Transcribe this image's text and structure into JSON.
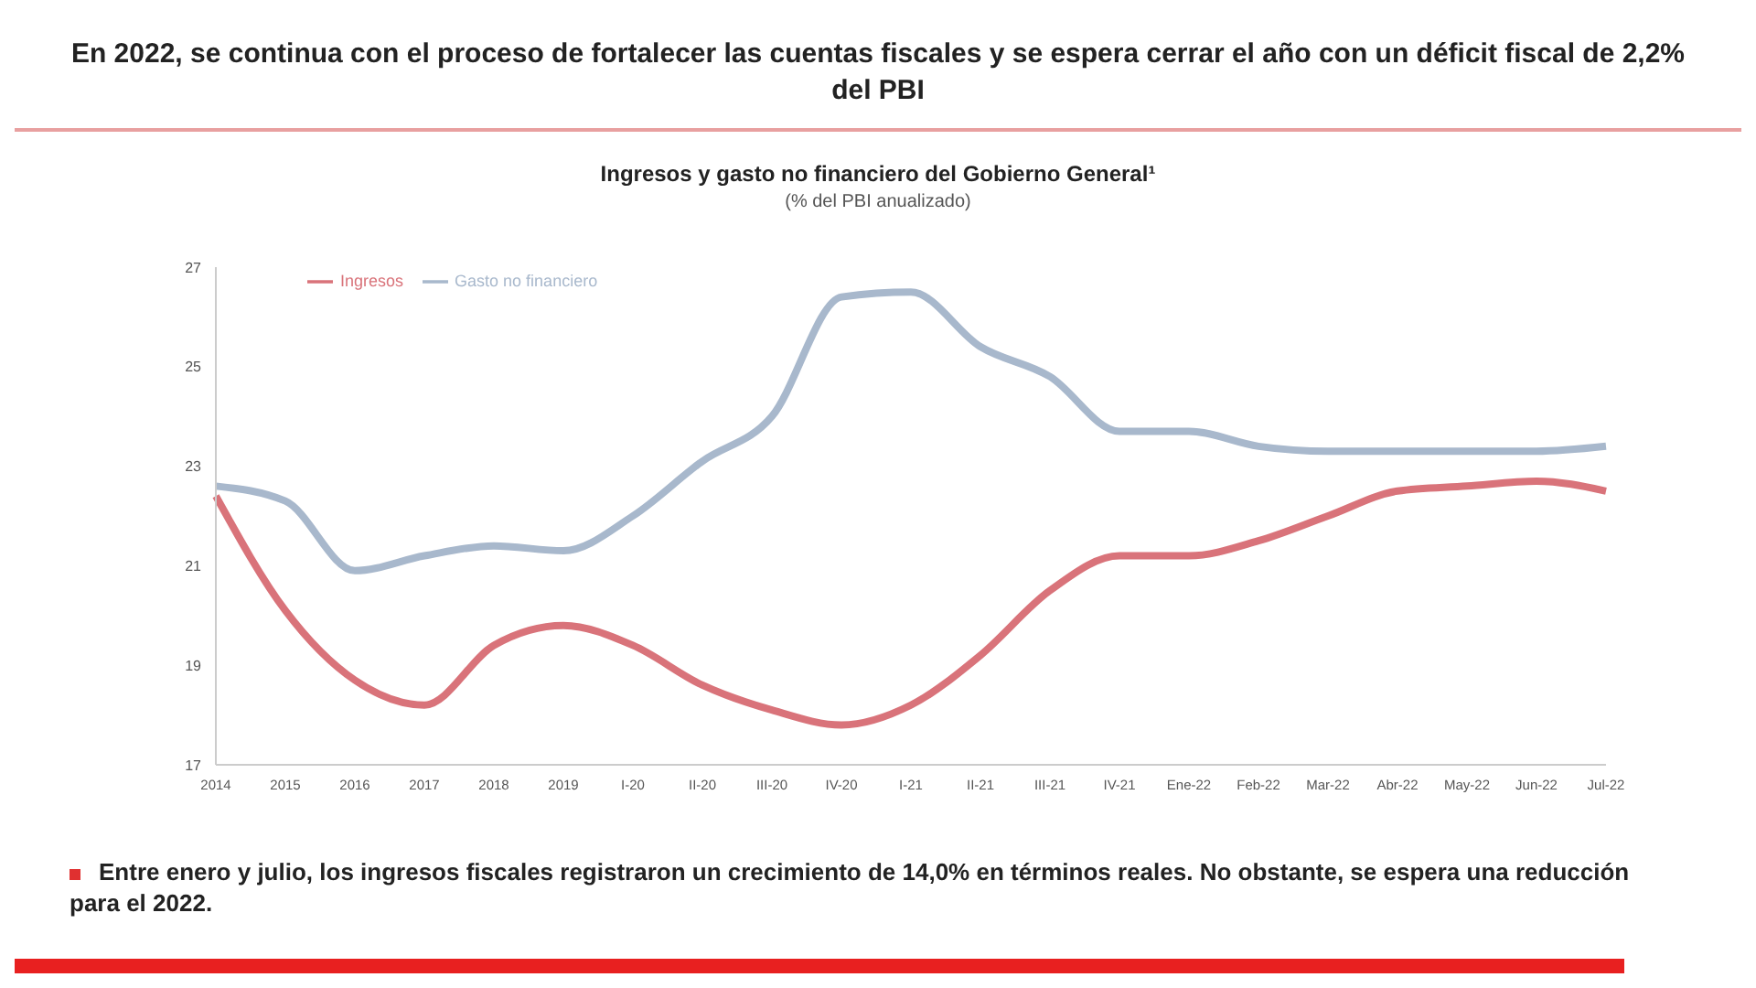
{
  "chart_data": {
    "type": "line",
    "title": "Ingresos y gasto no financiero del Gobierno General¹",
    "subtitle": "(% del PBI anualizado)",
    "annotations": [
      "En 2022, se continua con el proceso de fortalecer las cuentas fiscales y se espera cerrar el año con un déficit fiscal de 2,2% del PBI",
      "Entre enero y julio, los ingresos fiscales registraron un crecimiento de 14,0% en términos reales. No obstante, se espera una reducción para el 2022."
    ],
    "categories": [
      "2014",
      "2015",
      "2016",
      "2017",
      "2018",
      "2019",
      "I-20",
      "II-20",
      "III-20",
      "IV-20",
      "I-21",
      "II-21",
      "III-21",
      "IV-21",
      "Ene-22",
      "Feb-22",
      "Mar-22",
      "Abr-22",
      "May-22",
      "Jun-22",
      "Jul-22"
    ],
    "series": [
      {
        "name": "Ingresos",
        "color": "#d9737a",
        "values": [
          22.4,
          20.1,
          18.7,
          18.2,
          19.4,
          19.8,
          19.4,
          18.6,
          18.1,
          17.8,
          18.2,
          19.2,
          20.5,
          21.2,
          21.2,
          21.5,
          22.0,
          22.5,
          22.6,
          22.7,
          22.5
        ]
      },
      {
        "name": "Gasto no financiero",
        "color": "#a8b8cc",
        "values": [
          22.6,
          22.3,
          20.9,
          21.2,
          21.4,
          21.3,
          22.0,
          23.1,
          24.0,
          26.4,
          26.5,
          25.4,
          24.8,
          23.7,
          23.7,
          23.4,
          23.3,
          23.3,
          23.3,
          23.3,
          23.4
        ]
      }
    ],
    "ylim": [
      17,
      27
    ],
    "yticks": [
      17,
      19,
      21,
      23,
      25,
      27
    ],
    "grid": false,
    "legend": "top left",
    "marker": "none",
    "line_style": "solid"
  }
}
